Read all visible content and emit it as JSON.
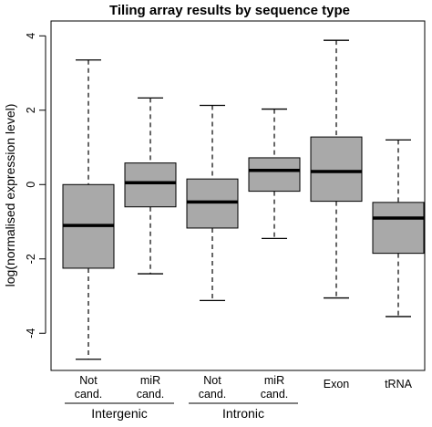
{
  "chart_data": {
    "type": "boxplot",
    "title": "Tiling array results by sequence type",
    "ylabel": "log(normalised expression level)",
    "xlabel": "",
    "ylim": [
      -5,
      4.4
    ],
    "yticks": [
      -4,
      -2,
      0,
      2,
      4
    ],
    "ytick_labels": [
      "-4",
      "-2",
      "0",
      "2",
      "4"
    ],
    "box_color": "#a9a9a9",
    "categories": [
      {
        "label_line1": "Not",
        "label_line2": "cand.",
        "min": -4.7,
        "q1": -2.25,
        "median": -1.1,
        "q3": 0.0,
        "max": 3.35
      },
      {
        "label_line1": "miR",
        "label_line2": "cand.",
        "min": -2.4,
        "q1": -0.6,
        "median": 0.05,
        "q3": 0.58,
        "max": 2.33
      },
      {
        "label_line1": "Not",
        "label_line2": "cand.",
        "min": -3.12,
        "q1": -1.17,
        "median": -0.47,
        "q3": 0.15,
        "max": 2.13
      },
      {
        "label_line1": "miR",
        "label_line2": "cand.",
        "min": -1.45,
        "q1": -0.18,
        "median": 0.38,
        "q3": 0.72,
        "max": 2.03
      },
      {
        "label_line1": "Exon",
        "label_line2": "",
        "min": -3.05,
        "q1": -0.45,
        "median": 0.35,
        "q3": 1.28,
        "max": 3.88
      },
      {
        "label_line1": "tRNA",
        "label_line2": "",
        "min": -3.55,
        "q1": -1.85,
        "median": -0.9,
        "q3": -0.48,
        "max": 1.2
      }
    ],
    "groups": [
      {
        "label": "Intergenic",
        "from_index": 0,
        "to_index": 1
      },
      {
        "label": "Intronic",
        "from_index": 2,
        "to_index": 3
      }
    ]
  }
}
